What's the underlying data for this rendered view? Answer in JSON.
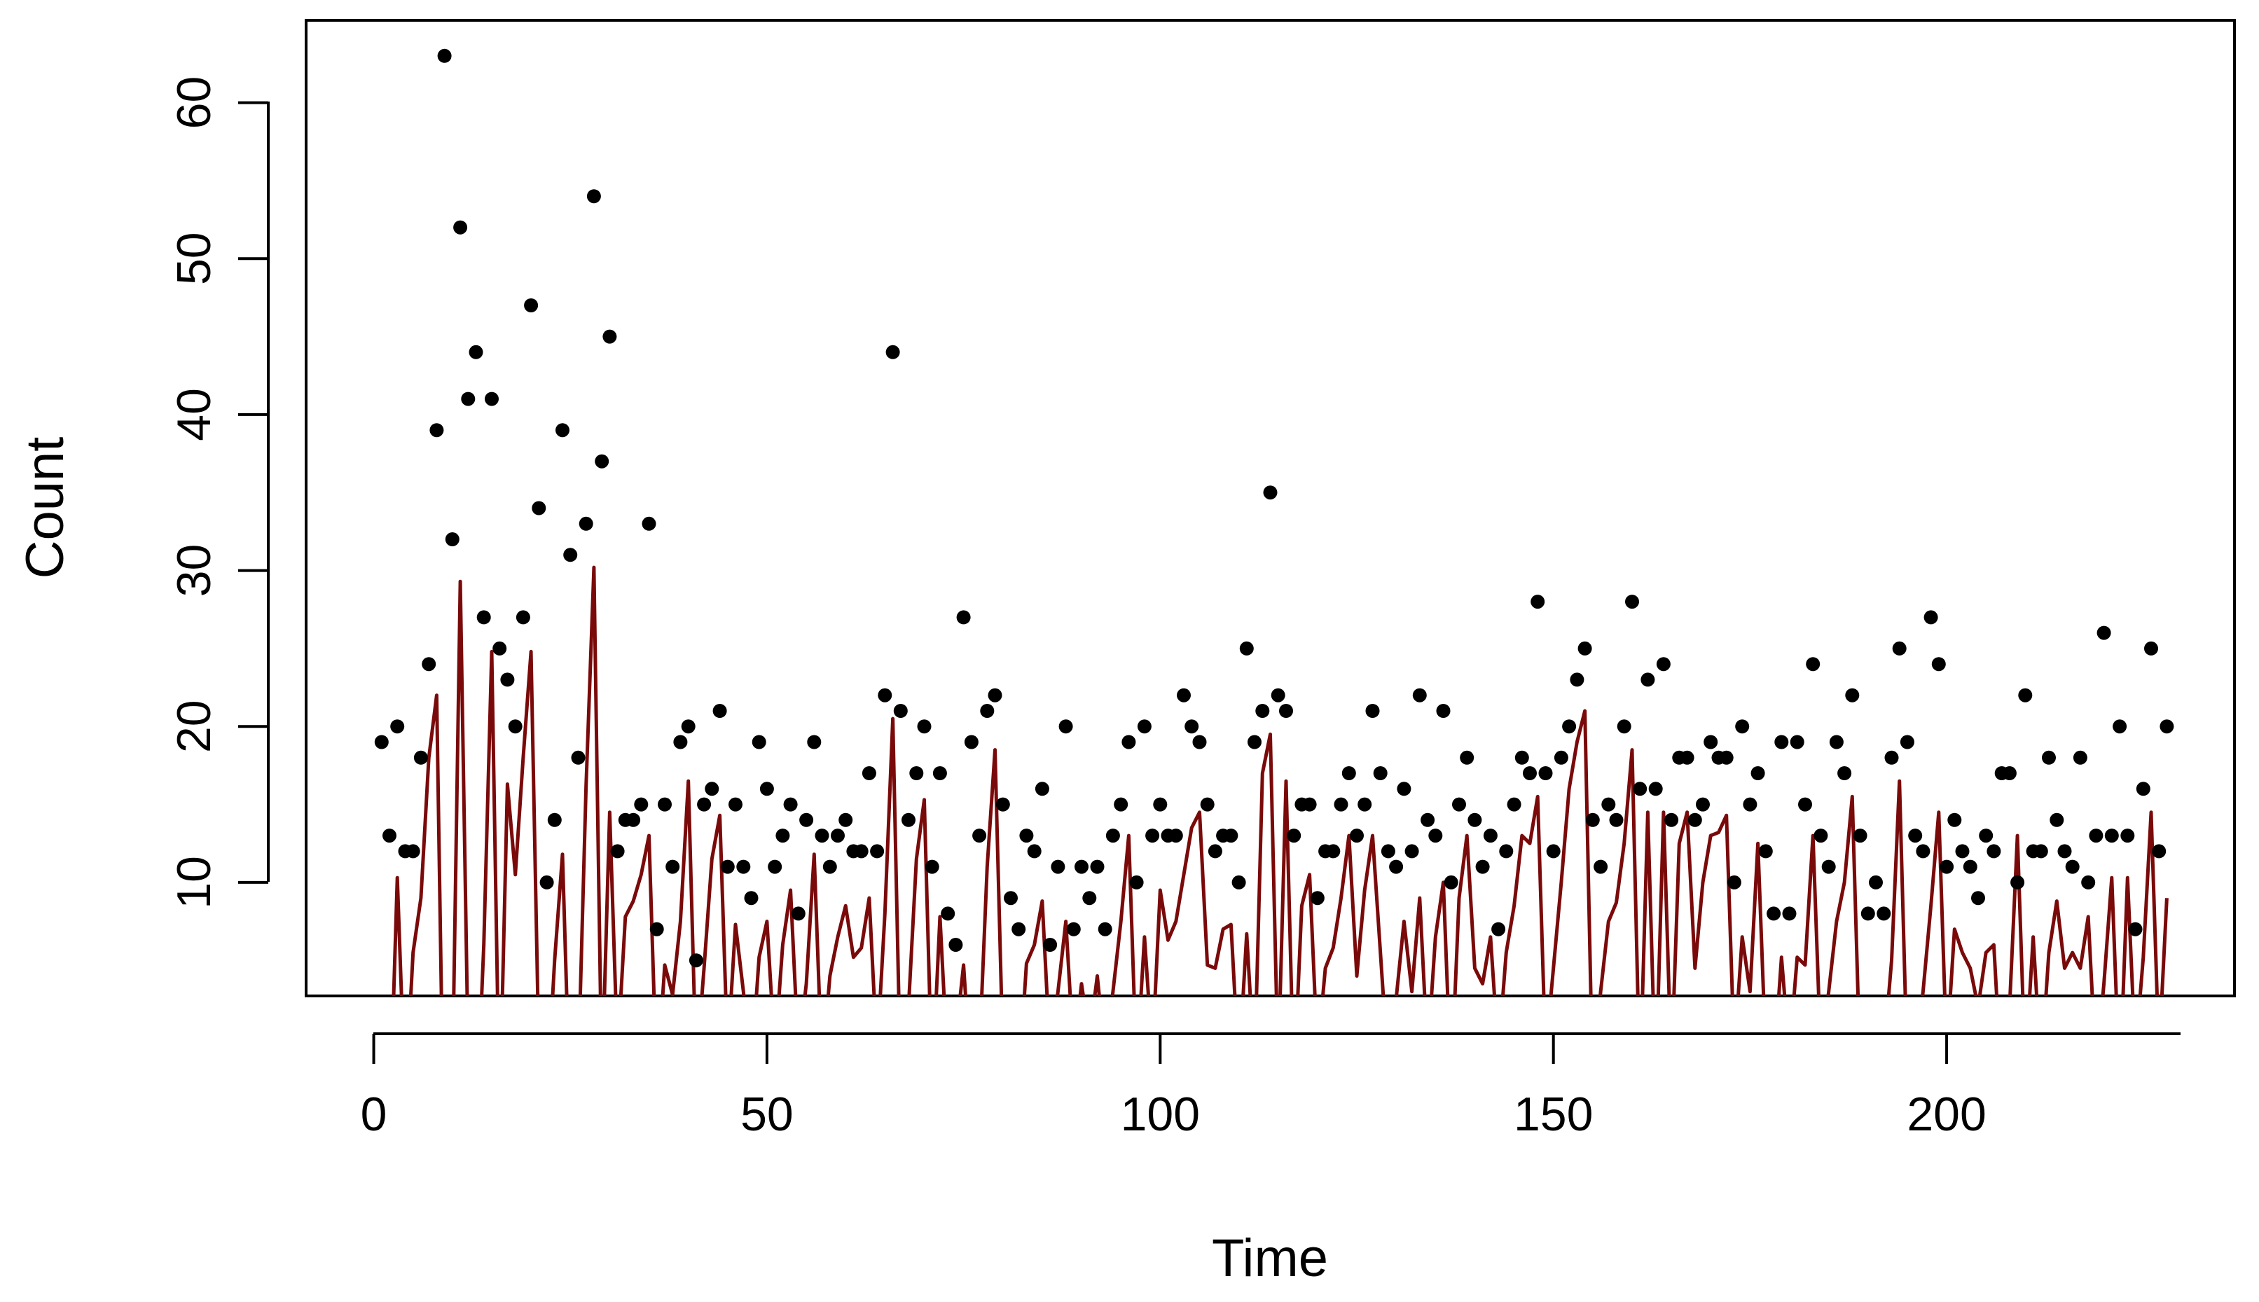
{
  "chart_data": {
    "type": "scatter",
    "title": "",
    "xlabel": "Time",
    "ylabel": "Count",
    "xlim": [
      -8.6,
      236.6
    ],
    "ylim": [
      2.72,
      65.28
    ],
    "x_ticks": [
      0,
      50,
      100,
      150,
      200
    ],
    "y_ticks": [
      10,
      20,
      30,
      40,
      50,
      60
    ],
    "grid": false,
    "legend": "none",
    "colors": {
      "points": "#000000",
      "line": "#7a0a0a",
      "axis": "#000000"
    },
    "series": [
      {
        "type": "scatter",
        "x": [
          1,
          2,
          3,
          4,
          5,
          6,
          7,
          8,
          9,
          10,
          11,
          12,
          13,
          14,
          15,
          16,
          17,
          18,
          19,
          20,
          21,
          22,
          23,
          24,
          25,
          26,
          27,
          28,
          29,
          30,
          31,
          32,
          33,
          34,
          35,
          36,
          37,
          38,
          39,
          40,
          41,
          42,
          43,
          44,
          45,
          46,
          47,
          48,
          49,
          50,
          51,
          52,
          53,
          54,
          55,
          56,
          57,
          58,
          59,
          60,
          61,
          62,
          63,
          64,
          65,
          66,
          67,
          68,
          69,
          70,
          71,
          72,
          73,
          74,
          75,
          76,
          77,
          78,
          79,
          80,
          81,
          82,
          83,
          84,
          85,
          86,
          87,
          88,
          89,
          90,
          91,
          92,
          93,
          94,
          95,
          96,
          97,
          98,
          99,
          100,
          101,
          102,
          103,
          104,
          105,
          106,
          107,
          108,
          109,
          110,
          111,
          112,
          113,
          114,
          115,
          116,
          117,
          118,
          119,
          120,
          121,
          122,
          123,
          124,
          125,
          126,
          127,
          128,
          129,
          130,
          131,
          132,
          133,
          134,
          135,
          136,
          137,
          138,
          139,
          140,
          141,
          142,
          143,
          144,
          145,
          146,
          147,
          148,
          149,
          150,
          151,
          152,
          153,
          154,
          155,
          156,
          157,
          158,
          159,
          160,
          161,
          162,
          163,
          164,
          165,
          166,
          167,
          168,
          169,
          170,
          171,
          172,
          173,
          174,
          175,
          176,
          177,
          178,
          179,
          180,
          181,
          182,
          183,
          184,
          185,
          186,
          187,
          188,
          189,
          190,
          191,
          192,
          193,
          194,
          195,
          196,
          197,
          198,
          199,
          200,
          201,
          202,
          203,
          204,
          205,
          206,
          207,
          208,
          209,
          210,
          211,
          212,
          213,
          214,
          215,
          216,
          217,
          218,
          219,
          220,
          221,
          222,
          223,
          224,
          225,
          226,
          227,
          228
        ],
        "y": [
          19,
          13,
          20,
          12,
          12,
          18,
          24,
          39,
          63,
          32,
          52,
          41,
          44,
          27,
          41,
          25,
          23,
          20,
          27,
          47,
          34,
          10,
          14,
          39,
          31,
          18,
          33,
          54,
          37,
          45,
          12,
          14,
          14,
          15,
          33,
          7,
          15,
          11,
          19,
          20,
          5,
          15,
          16,
          21,
          11,
          15,
          11,
          9,
          19,
          16,
          11,
          13,
          15,
          8,
          14,
          19,
          13,
          11,
          13,
          14,
          12,
          12,
          17,
          12,
          22,
          44,
          21,
          14,
          17,
          20,
          11,
          17,
          8,
          6,
          27,
          19,
          13,
          21,
          22,
          15,
          9,
          7,
          13,
          12,
          16,
          6,
          11,
          20,
          7,
          11,
          9,
          11,
          7,
          13,
          15,
          19,
          10,
          20,
          13,
          15,
          13,
          13,
          22,
          20,
          19,
          15,
          12,
          13,
          13,
          10,
          25,
          19,
          21,
          35,
          22,
          21,
          13,
          15,
          15,
          9,
          12,
          12,
          15,
          17,
          13,
          15,
          21,
          17,
          12,
          11,
          16,
          12,
          22,
          14,
          13,
          21,
          10,
          15,
          18,
          14,
          11,
          13,
          7,
          12,
          15,
          18,
          17,
          28,
          17,
          12,
          18,
          20,
          23,
          25,
          14,
          11,
          15,
          14,
          20,
          28,
          16,
          23,
          16,
          24,
          14,
          18,
          18,
          14,
          15,
          19,
          18,
          18,
          10,
          20,
          15,
          17,
          12,
          8,
          19,
          8,
          19,
          15,
          24,
          13,
          11,
          19,
          17,
          22,
          13,
          8,
          10,
          8,
          18,
          25,
          19,
          13,
          12,
          27,
          24,
          11,
          14,
          12,
          11,
          9,
          13,
          12,
          17,
          17,
          10,
          22,
          12,
          12,
          18,
          14,
          12,
          11,
          18,
          10,
          13,
          26,
          13,
          20,
          13,
          7,
          16,
          25,
          12,
          20
        ]
      },
      {
        "type": "line",
        "x": [
          1,
          2,
          3,
          4,
          5,
          6,
          7,
          8,
          9,
          10,
          11,
          12,
          13,
          14,
          15,
          16,
          17,
          18,
          19,
          20,
          21,
          22,
          23,
          24,
          25,
          26,
          27,
          28,
          29,
          30,
          31,
          32,
          33,
          34,
          35,
          36,
          37,
          38,
          39,
          40,
          41,
          42,
          43,
          44,
          45,
          46,
          47,
          48,
          49,
          50,
          51,
          52,
          53,
          54,
          55,
          56,
          57,
          58,
          59,
          60,
          61,
          62,
          63,
          64,
          65,
          66,
          67,
          68,
          69,
          70,
          71,
          72,
          73,
          74,
          75,
          76,
          77,
          78,
          79,
          80,
          81,
          82,
          83,
          84,
          85,
          86,
          87,
          88,
          89,
          90,
          91,
          92,
          93,
          94,
          95,
          96,
          97,
          98,
          99,
          100,
          101,
          102,
          103,
          104,
          105,
          106,
          107,
          108,
          109,
          110,
          111,
          112,
          113,
          114,
          115,
          116,
          117,
          118,
          119,
          120,
          121,
          122,
          123,
          124,
          125,
          126,
          127,
          128,
          129,
          130,
          131,
          132,
          133,
          134,
          135,
          136,
          137,
          138,
          139,
          140,
          141,
          142,
          143,
          144,
          145,
          146,
          147,
          148,
          149,
          150,
          151,
          152,
          153,
          154,
          155,
          156,
          157,
          158,
          159,
          160,
          161,
          162,
          163,
          164,
          165,
          166,
          167,
          168,
          169,
          170,
          171,
          172,
          173,
          174,
          175,
          176,
          177,
          178,
          179,
          180,
          181,
          182,
          183,
          184,
          185,
          186,
          187,
          188,
          189,
          190,
          191,
          192,
          193,
          194,
          195,
          196,
          197,
          198,
          199,
          200,
          201,
          202,
          203,
          204,
          205,
          206,
          207,
          208,
          209,
          210,
          211,
          212,
          213,
          214,
          215,
          216,
          217,
          218,
          219,
          220,
          221,
          222,
          223,
          224,
          225,
          226,
          227,
          228
        ],
        "y": [
          -2,
          -6,
          10.3,
          -4,
          5.5,
          9,
          18,
          22,
          -10,
          -3,
          29.3,
          -1,
          -6,
          6,
          24.8,
          -5,
          16.3,
          10.5,
          18,
          24.8,
          -1,
          -4,
          5,
          11.8,
          -5,
          -2,
          16.2,
          30.2,
          -3,
          14.5,
          -1,
          7.8,
          8.8,
          10.5,
          13,
          -3,
          4.7,
          2.8,
          7.5,
          16.5,
          -2,
          4.5,
          11.5,
          14.3,
          -1,
          7.3,
          3,
          -2,
          5.2,
          7.5,
          -1,
          6,
          9.5,
          -1,
          3.5,
          11.8,
          -2,
          4,
          6.5,
          8.5,
          5.2,
          5.8,
          9,
          -1,
          8,
          20.5,
          -3,
          2,
          11.5,
          15.3,
          -3,
          7.8,
          -2,
          0,
          4.7,
          -3,
          -1,
          11,
          18.5,
          -1,
          -2,
          -3,
          4.8,
          6,
          8.8,
          -1,
          3,
          7.5,
          -1,
          3.5,
          0,
          4,
          -1,
          3,
          7.5,
          13,
          -2,
          6.5,
          -1,
          9.5,
          6.3,
          7.5,
          10.5,
          13.5,
          14.5,
          4.7,
          4.5,
          7,
          7.3,
          -2,
          6.7,
          -2,
          17,
          19.5,
          -2,
          16.5,
          -3,
          8.5,
          10.5,
          -1,
          4.5,
          5.8,
          9,
          13,
          4,
          9.5,
          13,
          5.5,
          -2,
          2.5,
          7.5,
          3,
          9,
          -1,
          6.5,
          10,
          -3,
          9,
          13,
          4.5,
          3.5,
          6.5,
          -1,
          5.5,
          8.5,
          13,
          12.5,
          15.5,
          -1,
          4.5,
          10,
          16,
          19,
          21,
          -3,
          3,
          7.5,
          8.7,
          12.5,
          18.5,
          -3,
          14.5,
          -3,
          14.5,
          -2,
          12.5,
          14.5,
          4.5,
          10,
          13,
          13.2,
          14.3,
          -1,
          6.5,
          3,
          12.5,
          -1,
          -2,
          5.2,
          -1,
          5.2,
          4.7,
          13,
          -1,
          3,
          7.5,
          10,
          15.5,
          -2,
          -1,
          -2,
          -1,
          5,
          16.5,
          -2,
          -1,
          3,
          8.5,
          14.5,
          -1,
          7,
          5.5,
          4.5,
          2,
          5.5,
          6,
          -3,
          2,
          13,
          -2,
          6.5,
          -2,
          5.5,
          8.8,
          4.5,
          5.5,
          4.5,
          7.8,
          -2,
          3.5,
          10.3,
          -3,
          10.3,
          -1,
          5.2,
          14.5,
          -1,
          9
        ]
      }
    ]
  }
}
